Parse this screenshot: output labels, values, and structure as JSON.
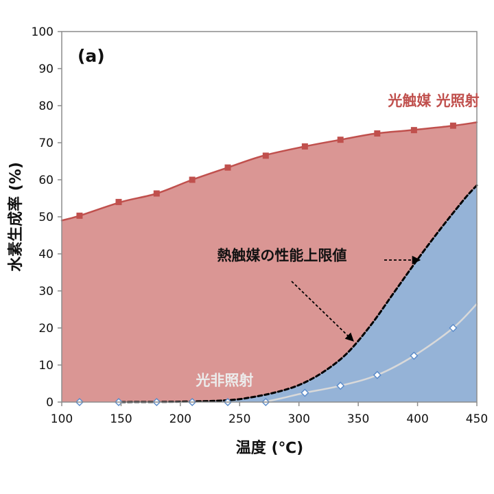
{
  "chart_data": {
    "type": "area",
    "panel_label": "(a)",
    "xlabel": "温度 (℃)",
    "ylabel": "水素生成率 (%)",
    "xlim": [
      100,
      450
    ],
    "ylim": [
      0,
      100
    ],
    "x_ticks": [
      100,
      150,
      200,
      250,
      300,
      350,
      400,
      450
    ],
    "y_ticks": [
      0,
      10,
      20,
      30,
      40,
      50,
      60,
      70,
      80,
      90,
      100
    ],
    "grid": false,
    "series": [
      {
        "name": "光触媒 光照射",
        "color": "#c0504d",
        "fill": "#da9694",
        "marker": "square",
        "curve": [
          [
            100,
            49
          ],
          [
            115,
            50.3
          ],
          [
            150,
            54
          ],
          [
            180,
            56.3
          ],
          [
            210,
            60
          ],
          [
            240,
            63.3
          ],
          [
            270,
            66.5
          ],
          [
            305,
            69
          ],
          [
            335,
            70.8
          ],
          [
            365,
            72.5
          ],
          [
            395,
            73.4
          ],
          [
            430,
            74.6
          ],
          [
            450,
            75.5
          ]
        ],
        "points": [
          [
            115,
            50.3
          ],
          [
            148,
            54
          ],
          [
            180,
            56.3
          ],
          [
            210,
            60
          ],
          [
            240,
            63.3
          ],
          [
            272,
            66.5
          ],
          [
            305,
            69
          ],
          [
            335,
            70.8
          ],
          [
            366,
            72.5
          ],
          [
            397,
            73.4
          ],
          [
            430,
            74.6
          ]
        ]
      },
      {
        "name": "熱触媒の性能上限値",
        "color": "#000000",
        "fill": "#95b3d7",
        "style": "dashed",
        "curve": [
          [
            150,
            0
          ],
          [
            200,
            0.1
          ],
          [
            240,
            0.5
          ],
          [
            260,
            1.3
          ],
          [
            280,
            2.6
          ],
          [
            300,
            4.6
          ],
          [
            320,
            8
          ],
          [
            340,
            13
          ],
          [
            360,
            20.5
          ],
          [
            380,
            29.5
          ],
          [
            400,
            38.5
          ],
          [
            420,
            47
          ],
          [
            440,
            55
          ],
          [
            450,
            58.5
          ]
        ]
      },
      {
        "name": "光非照射",
        "color": "#d9d9d9",
        "marker": "diamond",
        "curve": [
          [
            270,
            0
          ],
          [
            285,
            1
          ],
          [
            305,
            2.5
          ],
          [
            335,
            4.4
          ],
          [
            366,
            7.3
          ],
          [
            397,
            12.5
          ],
          [
            430,
            20
          ],
          [
            450,
            26.5
          ]
        ],
        "points": [
          [
            115,
            0
          ],
          [
            148,
            0
          ],
          [
            180,
            0
          ],
          [
            210,
            0
          ],
          [
            240,
            0
          ],
          [
            272,
            0
          ],
          [
            305,
            2.5
          ],
          [
            335,
            4.4
          ],
          [
            366,
            7.3
          ],
          [
            397,
            12.5
          ],
          [
            430,
            20
          ]
        ]
      }
    ],
    "annotations": [
      {
        "text": "光触媒 光照射",
        "color": "#c0504d",
        "x": 375,
        "y": 80
      },
      {
        "text": "熱触媒の性能上限値",
        "color": "#111111",
        "x": 231,
        "y": 38.2
      },
      {
        "text": "光非照射",
        "color": "#ececec",
        "x": 213,
        "y": 4.5
      }
    ]
  }
}
